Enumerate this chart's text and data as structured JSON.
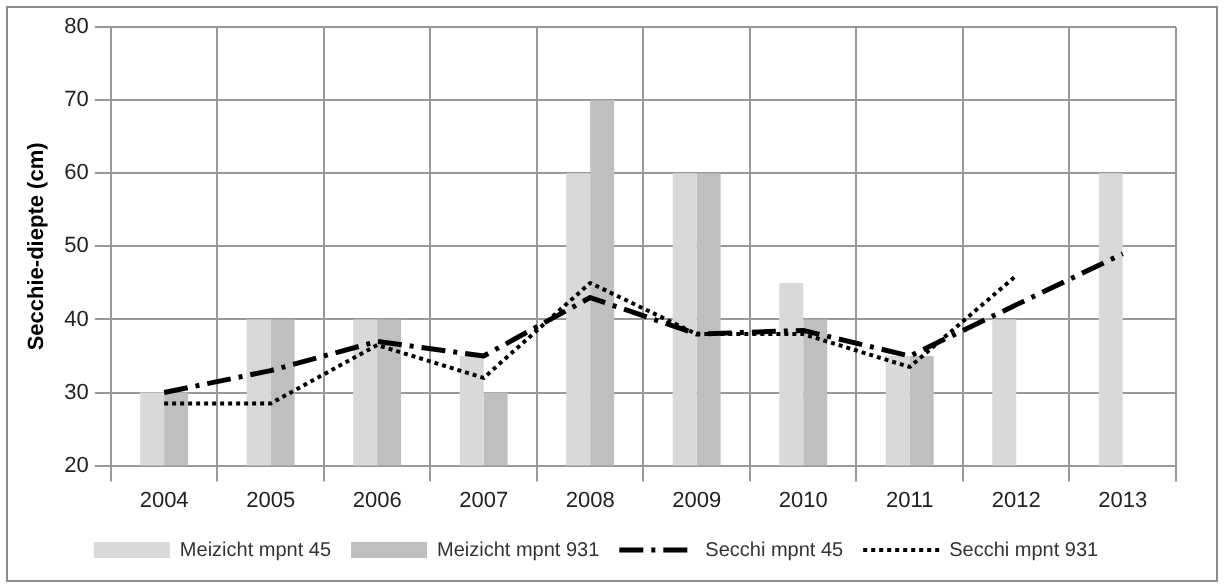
{
  "chart_data": {
    "type": "bar",
    "ylabel": "Secchie-diepte (cm)",
    "categories": [
      "2004",
      "2005",
      "2006",
      "2007",
      "2008",
      "2009",
      "2010",
      "2011",
      "2012",
      "2013"
    ],
    "series": [
      {
        "name": "Meizicht mpnt 45",
        "color": "#d9d9d9",
        "values": [
          30,
          40,
          40,
          35,
          60,
          60,
          45,
          35,
          40,
          60
        ]
      },
      {
        "name": "Meizicht mpnt 931",
        "color": "#bfbfbf",
        "values": [
          30,
          40,
          40,
          30,
          70,
          60,
          40,
          35,
          null,
          null
        ]
      },
      {
        "name": "Secchi mpnt 45",
        "type": "line",
        "color": "#000000",
        "line_style": "dashed",
        "values": [
          30,
          33,
          37,
          35,
          43,
          38,
          38.5,
          35,
          42,
          49
        ]
      },
      {
        "name": "Secchi mpnt 931",
        "type": "line",
        "color": "#000000",
        "line_style": "dotted",
        "values": [
          28.5,
          28.5,
          36.5,
          32,
          45,
          38,
          38,
          33.5,
          46,
          null
        ]
      }
    ],
    "ylim": [
      20,
      80
    ],
    "yticks": [
      20,
      30,
      40,
      50,
      60,
      70,
      80
    ],
    "grid": true,
    "legend": "bottom",
    "marker": "none"
  }
}
